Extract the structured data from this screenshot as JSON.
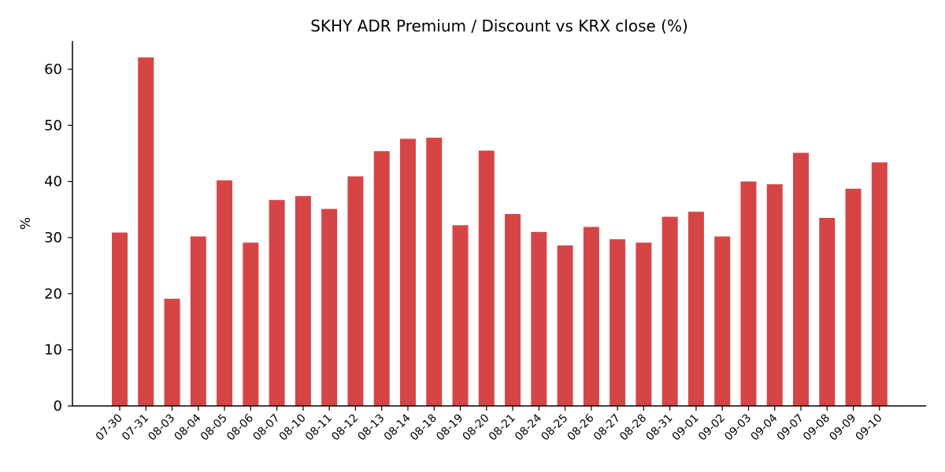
{
  "chart_data": {
    "type": "bar",
    "title": "SKHY ADR Premium / Discount vs KRX close (%)",
    "xlabel": "",
    "ylabel": "%",
    "ylim": [
      0,
      65
    ],
    "yticks": [
      0,
      10,
      20,
      30,
      40,
      50,
      60
    ],
    "grid": false,
    "bar_color": "#d64545",
    "categories": [
      "07-30",
      "07-31",
      "08-03",
      "08-04",
      "08-05",
      "08-06",
      "08-07",
      "08-10",
      "08-11",
      "08-12",
      "08-13",
      "08-14",
      "08-18",
      "08-19",
      "08-20",
      "08-21",
      "08-24",
      "08-25",
      "08-26",
      "08-27",
      "08-28",
      "08-31",
      "09-01",
      "09-02",
      "09-03",
      "09-04",
      "09-07",
      "09-08",
      "09-09",
      "09-10"
    ],
    "values": [
      30.9,
      62.1,
      19.1,
      30.2,
      40.2,
      29.1,
      36.7,
      37.4,
      35.1,
      40.9,
      45.4,
      47.6,
      47.8,
      32.2,
      45.5,
      34.2,
      31.0,
      28.6,
      31.9,
      29.7,
      29.1,
      33.7,
      34.6,
      30.2,
      40.0,
      39.5,
      45.1,
      33.5,
      38.7,
      43.4
    ]
  }
}
